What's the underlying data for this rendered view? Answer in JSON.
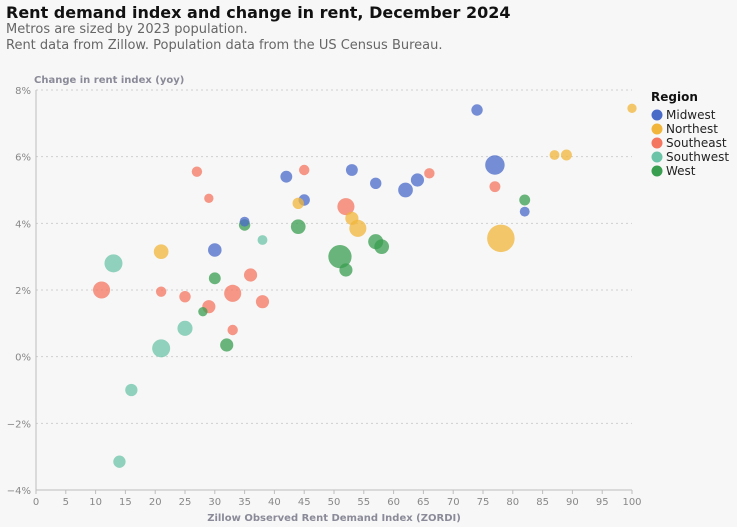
{
  "chart_data": {
    "type": "scatter",
    "title": "Rent demand index and change in rent, December 2024",
    "subtitle_lines": [
      "Metros are sized by 2023 population.",
      "Rent data from Zillow. Population data from the US Census Bureau."
    ],
    "xlabel": "Zillow Observed Rent Demand Index (ZORDI)",
    "ylabel": "Change in rent index (yoy)",
    "xlim": [
      0,
      100
    ],
    "ylim": [
      -4,
      8
    ],
    "x_ticks": [
      0,
      5,
      10,
      15,
      20,
      25,
      30,
      35,
      40,
      45,
      50,
      55,
      60,
      65,
      70,
      75,
      80,
      85,
      90,
      95,
      100
    ],
    "y_ticks": [
      -4,
      -2,
      0,
      2,
      4,
      6,
      8
    ],
    "y_tick_labels": [
      "−4%",
      "−2%",
      "0%",
      "2%",
      "4%",
      "6%",
      "8%"
    ],
    "grid": "horizontal dotted",
    "legend": {
      "title": "Region",
      "placement": "right",
      "entries": [
        {
          "name": "Midwest",
          "color": "#4a6ac8"
        },
        {
          "name": "Northest",
          "color": "#f0b53a"
        },
        {
          "name": "Southeast",
          "color": "#f47560"
        },
        {
          "name": "Southwest",
          "color": "#6cc4a8"
        },
        {
          "name": "West",
          "color": "#3a9e50"
        }
      ]
    },
    "series": [
      {
        "name": "Midwest",
        "points": [
          {
            "x": 74,
            "y": 7.4,
            "size": 1.2
          },
          {
            "x": 77,
            "y": 5.75,
            "size": 3.5
          },
          {
            "x": 53,
            "y": 5.6,
            "size": 1.3
          },
          {
            "x": 42,
            "y": 5.4,
            "size": 1.3
          },
          {
            "x": 57,
            "y": 5.2,
            "size": 1.2
          },
          {
            "x": 64,
            "y": 5.3,
            "size": 1.6
          },
          {
            "x": 62,
            "y": 5.0,
            "size": 2.0
          },
          {
            "x": 45,
            "y": 4.7,
            "size": 1.2
          },
          {
            "x": 82,
            "y": 4.35,
            "size": 0.9
          },
          {
            "x": 35,
            "y": 4.05,
            "size": 0.9
          },
          {
            "x": 30,
            "y": 3.2,
            "size": 1.7
          }
        ]
      },
      {
        "name": "Northest",
        "points": [
          {
            "x": 100,
            "y": 7.45,
            "size": 0.8
          },
          {
            "x": 87,
            "y": 6.05,
            "size": 0.9
          },
          {
            "x": 89,
            "y": 6.05,
            "size": 1.1
          },
          {
            "x": 44,
            "y": 4.6,
            "size": 1.2
          },
          {
            "x": 53,
            "y": 4.15,
            "size": 1.6
          },
          {
            "x": 54,
            "y": 3.85,
            "size": 2.7
          },
          {
            "x": 78,
            "y": 3.55,
            "size": 7.0
          },
          {
            "x": 21,
            "y": 3.15,
            "size": 2.0
          }
        ]
      },
      {
        "name": "Southeast",
        "points": [
          {
            "x": 27,
            "y": 5.55,
            "size": 1.0
          },
          {
            "x": 45,
            "y": 5.6,
            "size": 1.0
          },
          {
            "x": 66,
            "y": 5.5,
            "size": 1.0
          },
          {
            "x": 29,
            "y": 4.75,
            "size": 0.8
          },
          {
            "x": 77,
            "y": 5.1,
            "size": 1.1
          },
          {
            "x": 52,
            "y": 4.5,
            "size": 2.7
          },
          {
            "x": 36,
            "y": 2.45,
            "size": 1.6
          },
          {
            "x": 11,
            "y": 2.0,
            "size": 2.7
          },
          {
            "x": 21,
            "y": 1.95,
            "size": 1.0
          },
          {
            "x": 25,
            "y": 1.8,
            "size": 1.2
          },
          {
            "x": 33,
            "y": 1.9,
            "size": 2.7
          },
          {
            "x": 29,
            "y": 1.5,
            "size": 1.6
          },
          {
            "x": 38,
            "y": 1.65,
            "size": 1.6
          },
          {
            "x": 33,
            "y": 0.8,
            "size": 1.0
          }
        ]
      },
      {
        "name": "Southwest",
        "points": [
          {
            "x": 38,
            "y": 3.5,
            "size": 0.9
          },
          {
            "x": 13,
            "y": 2.8,
            "size": 3.0
          },
          {
            "x": 25,
            "y": 0.85,
            "size": 2.1
          },
          {
            "x": 21,
            "y": 0.25,
            "size": 3.0
          },
          {
            "x": 16,
            "y": -1.0,
            "size": 1.4
          },
          {
            "x": 14,
            "y": -3.15,
            "size": 1.4
          }
        ]
      },
      {
        "name": "West",
        "points": [
          {
            "x": 82,
            "y": 4.7,
            "size": 1.1
          },
          {
            "x": 35,
            "y": 3.95,
            "size": 1.2
          },
          {
            "x": 44,
            "y": 3.9,
            "size": 2.0
          },
          {
            "x": 51,
            "y": 3.0,
            "size": 5.0
          },
          {
            "x": 57,
            "y": 3.45,
            "size": 2.1
          },
          {
            "x": 58,
            "y": 3.3,
            "size": 2.0
          },
          {
            "x": 52,
            "y": 2.6,
            "size": 1.6
          },
          {
            "x": 30,
            "y": 2.35,
            "size": 1.3
          },
          {
            "x": 28,
            "y": 1.35,
            "size": 0.8
          },
          {
            "x": 32,
            "y": 0.35,
            "size": 1.6
          }
        ]
      }
    ]
  }
}
